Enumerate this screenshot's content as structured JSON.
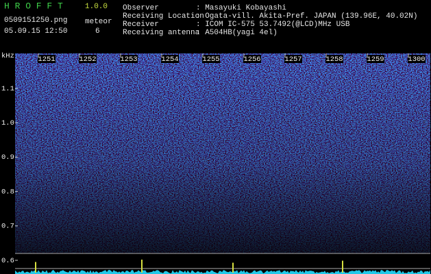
{
  "header": {
    "app_name": "H R O F F T",
    "version": "1.0.0",
    "filename": "0509151250.png",
    "datetime": "05.09.15 12:50",
    "meteor_label": "meteor",
    "meteor_count": "6"
  },
  "info": [
    {
      "label": "Observer",
      "value": ": Masayuki Kobayashi"
    },
    {
      "label": "Receiving Location",
      "value": ": Ogata-vill. Akita-Pref. JAPAN (139.96E, 40.02N)"
    },
    {
      "label": "Receiver",
      "value": ": ICOM IC-575 53.7492(@LCD)MHz USB"
    },
    {
      "label": "Receiving antenna",
      "value": ": A504HB(yagi 4el)"
    }
  ],
  "y_axis": {
    "unit": "kHz",
    "labels": [
      "1.1",
      "1.0",
      "0.9",
      "0.8",
      "0.7",
      "0.6"
    ]
  },
  "x_axis": {
    "labels": [
      "1251",
      "1252",
      "1253",
      "1254",
      "1255",
      "1256",
      "1257",
      "1258",
      "1259",
      "1300"
    ]
  }
}
